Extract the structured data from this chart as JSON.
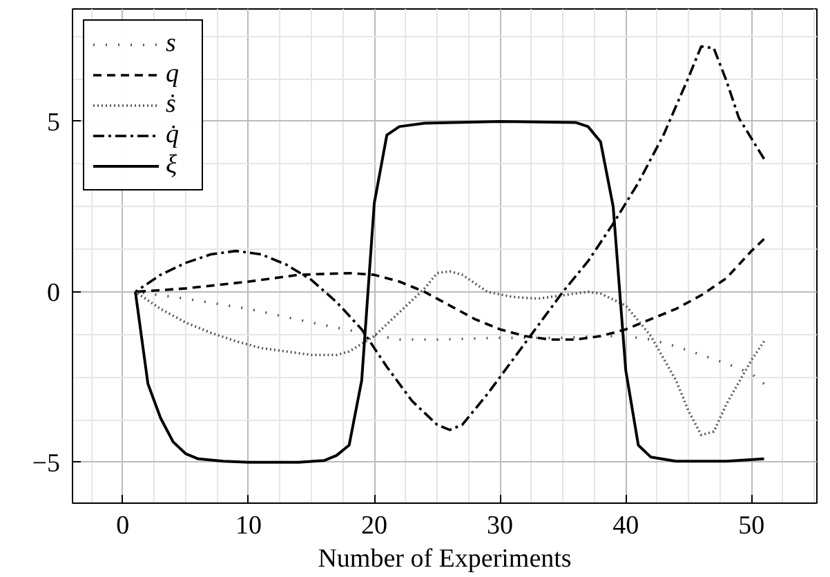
{
  "chart_data": {
    "type": "line",
    "xlabel": "Number of Experiments",
    "xlim": [
      -4,
      55.2
    ],
    "ylim": [
      -6.2,
      8.3
    ],
    "xticks": [
      0,
      10,
      20,
      30,
      40,
      50
    ],
    "yticks": [
      -5,
      0,
      5
    ],
    "grid": true,
    "legend": "top left",
    "marker": "none",
    "series": [
      {
        "name": "s",
        "color": "#555555",
        "line_style": "loosely dotted",
        "x": [
          1,
          5,
          10,
          15,
          19,
          22,
          25,
          30,
          35,
          38,
          40,
          42,
          44,
          46,
          48,
          50,
          51
        ],
        "values": [
          0,
          -0.2,
          -0.5,
          -0.9,
          -1.2,
          -1.4,
          -1.4,
          -1.35,
          -1.35,
          -1.3,
          -1.3,
          -1.4,
          -1.6,
          -1.85,
          -2.1,
          -2.4,
          -2.7
        ]
      },
      {
        "name": "q",
        "color": "#000000",
        "line_style": "dashed",
        "x": [
          1,
          5,
          10,
          14,
          18,
          20,
          22,
          24,
          26,
          28,
          30,
          32,
          34,
          36,
          38,
          40,
          42,
          44,
          46,
          48,
          50,
          51
        ],
        "values": [
          0,
          0.1,
          0.3,
          0.5,
          0.55,
          0.5,
          0.3,
          0,
          -0.4,
          -0.8,
          -1.1,
          -1.3,
          -1.4,
          -1.4,
          -1.3,
          -1.1,
          -0.8,
          -0.5,
          -0.1,
          0.4,
          1.2,
          1.55
        ]
      },
      {
        "name": "ṡ",
        "color": "#555555",
        "line_style": "dotted",
        "x": [
          1,
          3,
          5,
          7,
          9,
          11,
          13,
          15,
          17,
          18,
          20,
          22,
          24,
          25,
          26,
          27,
          29,
          31,
          33,
          35,
          37,
          38,
          40,
          42,
          44,
          45,
          46,
          47,
          48,
          50,
          51
        ],
        "values": [
          0,
          -0.5,
          -0.9,
          -1.2,
          -1.45,
          -1.65,
          -1.75,
          -1.85,
          -1.85,
          -1.75,
          -1.3,
          -0.6,
          0.1,
          0.55,
          0.6,
          0.5,
          0,
          -0.15,
          -0.2,
          -0.1,
          0,
          -0.05,
          -0.4,
          -1.3,
          -2.6,
          -3.5,
          -4.2,
          -4.1,
          -3.3,
          -2,
          -1.45
        ]
      },
      {
        "name": "q̇",
        "color": "#000000",
        "line_style": "dashdot",
        "x": [
          1,
          3,
          5,
          7,
          9,
          11,
          13,
          15,
          17,
          19,
          21,
          23,
          25,
          26,
          27,
          29,
          31,
          33,
          35,
          37,
          39,
          41,
          43,
          45,
          46,
          47,
          48,
          49,
          51
        ],
        "values": [
          0,
          0.5,
          0.85,
          1.1,
          1.2,
          1.1,
          0.8,
          0.35,
          -0.3,
          -1.1,
          -2.2,
          -3.2,
          -3.9,
          -4.05,
          -3.9,
          -3,
          -2,
          -1,
          0,
          0.9,
          2,
          3.2,
          4.6,
          6.3,
          7.2,
          7.15,
          6.2,
          5.1,
          3.9
        ]
      },
      {
        "name": "ξ",
        "color": "#000000",
        "line_style": "solid",
        "x": [
          1,
          2,
          3,
          4,
          5,
          6,
          8,
          10,
          14,
          16,
          17,
          18,
          19,
          20,
          21,
          22,
          24,
          30,
          36,
          37,
          38,
          39,
          40,
          41,
          42,
          44,
          48,
          51
        ],
        "values": [
          0,
          -2.7,
          -3.7,
          -4.4,
          -4.75,
          -4.9,
          -4.97,
          -5,
          -5,
          -4.95,
          -4.8,
          -4.5,
          -2.6,
          2.6,
          4.6,
          4.85,
          4.95,
          5,
          4.97,
          4.85,
          4.4,
          2.5,
          -2.3,
          -4.5,
          -4.85,
          -4.97,
          -4.97,
          -4.9
        ]
      }
    ]
  }
}
